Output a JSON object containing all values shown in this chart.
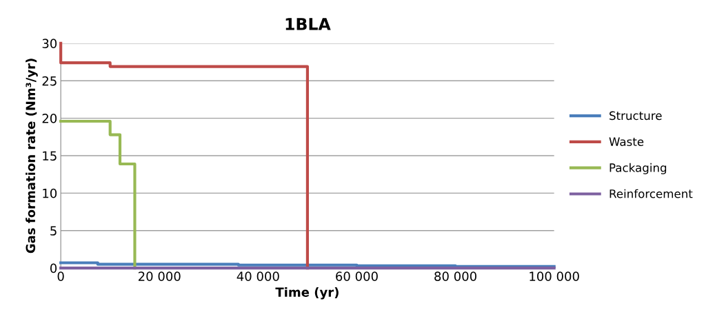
{
  "chart_data": {
    "type": "step",
    "title": "1BLA",
    "xlabel": "Time (yr)",
    "ylabel": "Gas formation rate (Nm³/yr)",
    "series": [
      {
        "name": "Structure",
        "color": "#4a7ebb",
        "x": [
          0,
          7500,
          36000,
          60000,
          80000,
          100000
        ],
        "values": [
          0.7,
          0.5,
          0.4,
          0.3,
          0.2,
          0.2
        ]
      },
      {
        "name": "Waste",
        "color": "#be4b48",
        "x": [
          0,
          0,
          10000,
          50000
        ],
        "values": [
          30,
          27.4,
          26.9,
          0
        ]
      },
      {
        "name": "Packaging",
        "color": "#98b954",
        "x": [
          0,
          10000,
          12000,
          15000
        ],
        "values": [
          19.6,
          17.8,
          13.9,
          0
        ]
      },
      {
        "name": "Reinforcement",
        "color": "#7d60a0",
        "x": [
          0,
          100000
        ],
        "values": [
          0,
          0
        ]
      }
    ],
    "xlim": [
      0,
      100000
    ],
    "xticks": [
      0,
      {
        "value": 20000,
        "label": "20 000"
      },
      {
        "value": 40000,
        "label": "40 000"
      },
      {
        "value": 60000,
        "label": "60 000"
      },
      {
        "value": 80000,
        "label": "80 000"
      },
      {
        "value": 100000,
        "label": "100 000"
      }
    ],
    "ylim": [
      0,
      30
    ],
    "yticks": [
      0,
      5,
      10,
      15,
      20,
      25,
      30
    ],
    "grid": "y",
    "legend": "right"
  }
}
